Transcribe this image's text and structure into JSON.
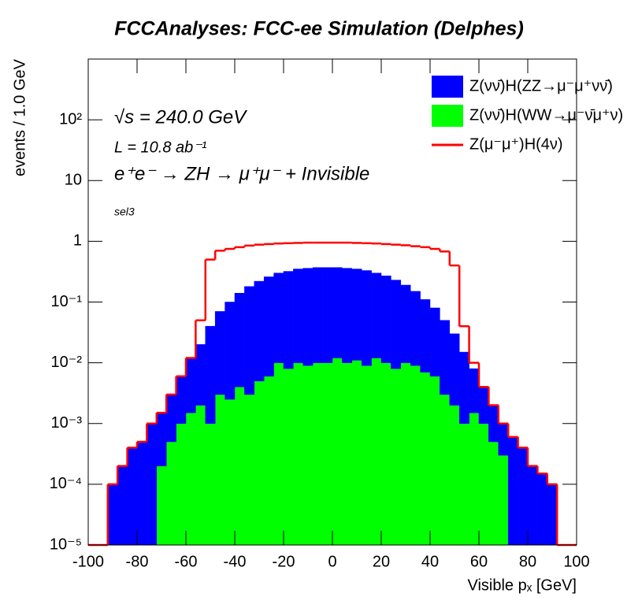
{
  "chart_data": {
    "type": "histogram",
    "title": "FCCAnalyses: FCC-ee Simulation (Delphes)",
    "x_label": "Visible pₓ [GeV]",
    "y_label": "events / 1.0 GeV",
    "annotations": [
      "√s = 240.0 GeV",
      "L = 10.8 ab⁻¹",
      "e⁺e⁻ → ZH → μ⁺μ⁻ + Invisible",
      "sel3"
    ],
    "log_y": true,
    "stacked": true,
    "legend": "top-right",
    "xlim": [
      -100,
      100
    ],
    "ylim": [
      1e-05,
      1000
    ],
    "xticks": [
      -100,
      -80,
      -60,
      -40,
      -20,
      0,
      20,
      40,
      60,
      80,
      100
    ],
    "yticks": [
      {
        "value": 1e-05,
        "label": "10⁻⁵"
      },
      {
        "value": 0.0001,
        "label": "10⁻⁴"
      },
      {
        "value": 0.001,
        "label": "10⁻³"
      },
      {
        "value": 0.01,
        "label": "10⁻²"
      },
      {
        "value": 0.1,
        "label": "10⁻¹"
      },
      1,
      10,
      {
        "value": 100,
        "label": "10²"
      }
    ],
    "bins": [
      -100,
      -96,
      -92,
      -88,
      -84,
      -80,
      -76,
      -72,
      -68,
      -64,
      -60,
      -56,
      -52,
      -48,
      -44,
      -40,
      -36,
      -32,
      -28,
      -24,
      -20,
      -16,
      -12,
      -8,
      -4,
      0,
      4,
      8,
      12,
      16,
      20,
      24,
      28,
      32,
      36,
      40,
      44,
      48,
      52,
      56,
      60,
      64,
      68,
      72,
      76,
      80,
      84,
      88,
      92,
      96,
      100
    ],
    "series": [
      {
        "name": "Z(νν̄)H(ZZ→μ⁻μ⁺νν̄)",
        "color": "#0000ff",
        "style": "fill",
        "values": [
          0,
          0,
          0.0001,
          0.0002,
          0.0004,
          0.0005,
          0.001,
          0.0013,
          0.0025,
          0.005,
          0.0105,
          0.018,
          0.039,
          0.067,
          0.0975,
          0.136,
          0.177,
          0.215,
          0.254,
          0.29,
          0.312,
          0.34,
          0.351,
          0.36,
          0.36,
          0.358,
          0.35,
          0.339,
          0.321,
          0.288,
          0.26,
          0.222,
          0.18,
          0.141,
          0.103,
          0.074,
          0.047,
          0.028,
          0.014,
          0.0065,
          0.003,
          0.0015,
          0.0007,
          0.0006,
          0.0004,
          0.0002,
          0.00015,
          0.0001,
          0,
          0
        ]
      },
      {
        "name": "Z(νν̄)H(WW→μ⁻ν̄μ⁺ν)",
        "color": "#00ff00",
        "style": "fill",
        "values": [
          0,
          0,
          0,
          0,
          0,
          0,
          0,
          0.0002,
          0.0005,
          0.001,
          0.0015,
          0.002,
          0.001,
          0.003,
          0.0025,
          0.004,
          0.003,
          0.005,
          0.006,
          0.01,
          0.008,
          0.01,
          0.009,
          0.01,
          0.01,
          0.012,
          0.01,
          0.011,
          0.009,
          0.012,
          0.01,
          0.008,
          0.01,
          0.009,
          0.007,
          0.006,
          0.003,
          0.002,
          0.001,
          0.0015,
          0.001,
          0.0005,
          0.0003,
          0,
          0,
          0,
          0,
          0,
          0,
          0
        ]
      },
      {
        "name": "Z(μ⁻μ⁺)H(4ν)",
        "color": "#ff0000",
        "style": "line",
        "values": [
          1e-05,
          1e-05,
          0.0001,
          0.0002,
          0.0004,
          0.0005,
          0.001,
          0.0015,
          0.003,
          0.006,
          0.012,
          0.05,
          0.5,
          0.7,
          0.75,
          0.8,
          0.85,
          0.88,
          0.9,
          0.92,
          0.93,
          0.94,
          0.95,
          0.95,
          0.95,
          0.95,
          0.95,
          0.94,
          0.93,
          0.92,
          0.9,
          0.88,
          0.86,
          0.83,
          0.8,
          0.75,
          0.68,
          0.4,
          0.04,
          0.01,
          0.004,
          0.002,
          0.001,
          0.0006,
          0.0004,
          0.0002,
          0.00015,
          0.0001,
          1e-05,
          1e-05
        ]
      }
    ]
  }
}
